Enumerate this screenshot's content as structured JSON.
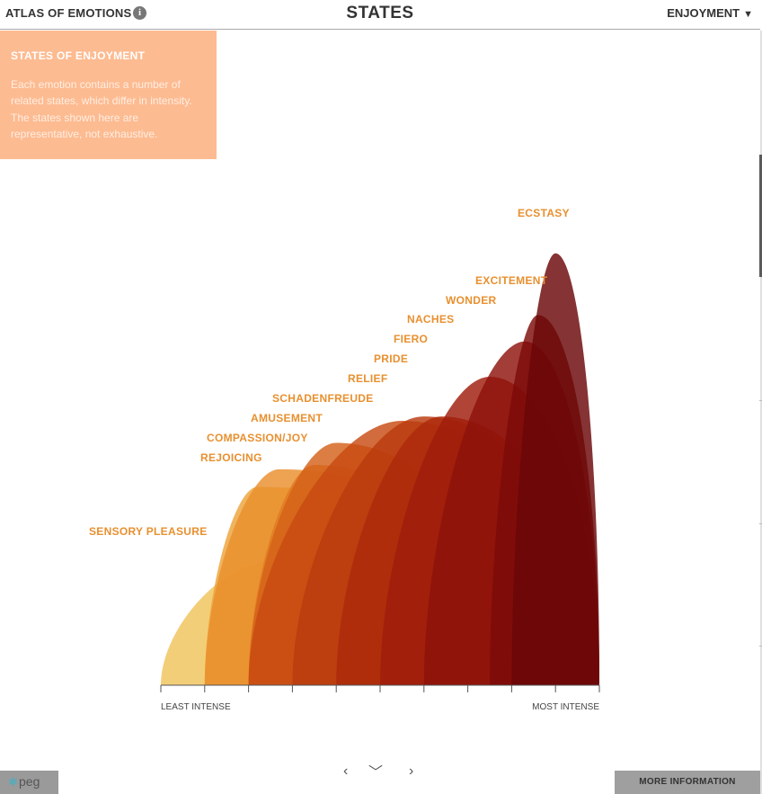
{
  "header": {
    "brand": "ATLAS OF EMOTIONS",
    "info_icon": "i",
    "title": "STATES",
    "emotion_selector": "ENJOYMENT",
    "caret": "▼"
  },
  "info_panel": {
    "heading": "STATES OF ENJOYMENT",
    "text": "Each emotion contains a number of related states, which differ in intensity. The states shown here are representative, not exhaustive."
  },
  "chart_data": {
    "type": "area",
    "title": "States of Enjoyment",
    "xlabel_min": "LEAST INTENSE",
    "xlabel_max": "MOST INTENSE",
    "xlim": [
      0,
      10
    ],
    "ylim": [
      0,
      10
    ],
    "states": [
      {
        "name": "SENSORY PLEASURE",
        "start": 0,
        "end": 5,
        "peak_x": 2.5,
        "peak": 2.8
      },
      {
        "name": "REJOICING",
        "start": 1,
        "end": 10,
        "peak_x": 2.2,
        "peak": 4.5
      },
      {
        "name": "COMPASSION/JOY",
        "start": 1,
        "end": 9,
        "peak_x": 2.7,
        "peak": 4.9
      },
      {
        "name": "AMUSEMENT",
        "start": 2,
        "end": 8,
        "peak_x": 3.5,
        "peak": 5.0
      },
      {
        "name": "SCHADENFREUDE",
        "start": 2,
        "end": 8,
        "peak_x": 4.0,
        "peak": 5.5
      },
      {
        "name": "RELIEF",
        "start": 2,
        "end": 10,
        "peak_x": 5.5,
        "peak": 6.0
      },
      {
        "name": "PRIDE",
        "start": 3,
        "end": 10,
        "peak_x": 6.0,
        "peak": 6.1
      },
      {
        "name": "FIERO",
        "start": 4,
        "end": 10,
        "peak_x": 6.4,
        "peak": 6.1
      },
      {
        "name": "NACHES",
        "start": 5,
        "end": 10,
        "peak_x": 7.5,
        "peak": 7.0
      },
      {
        "name": "WONDER",
        "start": 6,
        "end": 10,
        "peak_x": 8.3,
        "peak": 7.8
      },
      {
        "name": "EXCITEMENT",
        "start": 7.5,
        "end": 10,
        "peak_x": 8.6,
        "peak": 8.4
      },
      {
        "name": "ECSTASY",
        "start": 8,
        "end": 10,
        "peak_x": 9.0,
        "peak": 9.8
      }
    ],
    "colors": [
      "#f0c35a",
      "#eda33c",
      "#e98f2c",
      "#e07a22",
      "#d4611a",
      "#c84a12",
      "#ba3a0e",
      "#ad2a0c",
      "#9f1c0b",
      "#8e120b",
      "#7d0b09",
      "#6a0607"
    ],
    "label_color": "#e8902f"
  },
  "navigation": {
    "prev": "‹",
    "down": "﹀",
    "next": "›"
  },
  "footer": {
    "peg_logo": "peg",
    "more_info": "MORE INFORMATION"
  }
}
